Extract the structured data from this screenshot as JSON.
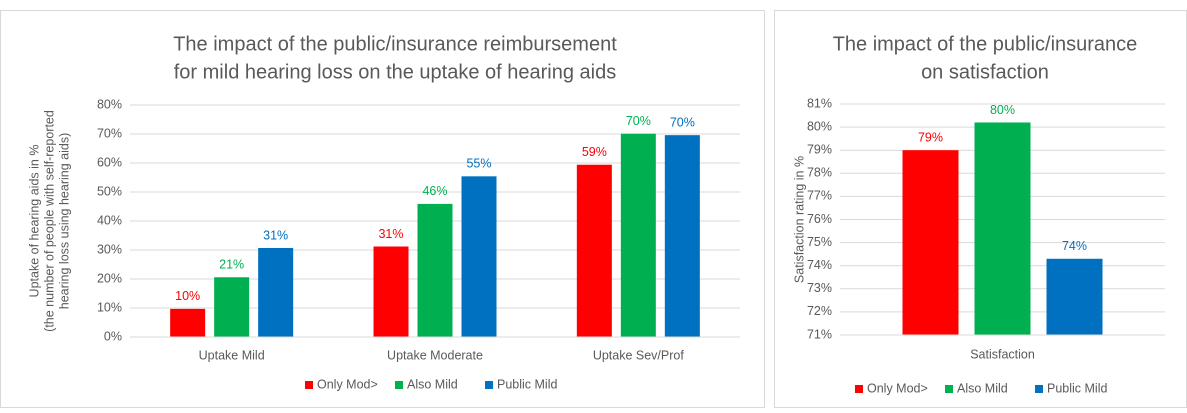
{
  "chart_data": [
    {
      "type": "bar",
      "title": [
        "The impact of the public/insurance reimbursement",
        "for mild hearing loss on the uptake of hearing aids"
      ],
      "ylabel": [
        "Uptake of hearing aids in %",
        "(the number of people with  self-reported",
        "hearing loss using hearing aids)"
      ],
      "categories": [
        "Uptake Mild",
        "Uptake Moderate",
        "Uptake Sev/Prof"
      ],
      "series": [
        {
          "name": "Only Mod>",
          "color": "#ff0000",
          "values": [
            9.7,
            31.2,
            59.4
          ],
          "value_labels": [
            "10%",
            "31%",
            "59%"
          ]
        },
        {
          "name": "Also Mild",
          "color": "#00b050",
          "values": [
            20.6,
            45.9,
            70.1
          ],
          "value_labels": [
            "21%",
            "46%",
            "70%"
          ]
        },
        {
          "name": "Public Mild",
          "color": "#0070c0",
          "values": [
            30.7,
            55.4,
            69.6
          ],
          "value_labels": [
            "31%",
            "55%",
            "70%"
          ]
        }
      ],
      "ylim": [
        0,
        80
      ],
      "yticks": [
        {
          "value": 0,
          "label": "0%"
        },
        {
          "value": 10,
          "label": "10%"
        },
        {
          "value": 20,
          "label": "20%"
        },
        {
          "value": 30,
          "label": "30%"
        },
        {
          "value": 40,
          "label": "40%"
        },
        {
          "value": 50,
          "label": "50%"
        },
        {
          "value": 60,
          "label": "60%"
        },
        {
          "value": 70,
          "label": "70%"
        },
        {
          "value": 80,
          "label": "80%"
        }
      ],
      "grid": true,
      "legend": "bottom"
    },
    {
      "type": "bar",
      "title": [
        "The impact of the public/insurance",
        "on satisfaction"
      ],
      "ylabel": [
        "Satisfaction rating in %"
      ],
      "categories": [
        "Satisfaction"
      ],
      "series": [
        {
          "name": "Only Mod>",
          "color": "#ff0000",
          "values": [
            79.0
          ],
          "value_labels": [
            "79%"
          ]
        },
        {
          "name": "Also Mild",
          "color": "#00b050",
          "values": [
            80.2
          ],
          "value_labels": [
            "80%"
          ]
        },
        {
          "name": "Public Mild",
          "color": "#0070c0",
          "values": [
            74.3
          ],
          "value_labels": [
            "74%"
          ]
        }
      ],
      "ylim": [
        71,
        81
      ],
      "yticks": [
        {
          "value": 71,
          "label": "71%"
        },
        {
          "value": 72,
          "label": "72%"
        },
        {
          "value": 73,
          "label": "73%"
        },
        {
          "value": 74,
          "label": "74%"
        },
        {
          "value": 75,
          "label": "75%"
        },
        {
          "value": 76,
          "label": "76%"
        },
        {
          "value": 77,
          "label": "77%"
        },
        {
          "value": 78,
          "label": "78%"
        },
        {
          "value": 79,
          "label": "79%"
        },
        {
          "value": 80,
          "label": "80%"
        },
        {
          "value": 81,
          "label": "81%"
        }
      ],
      "grid": true,
      "legend": "bottom"
    }
  ]
}
